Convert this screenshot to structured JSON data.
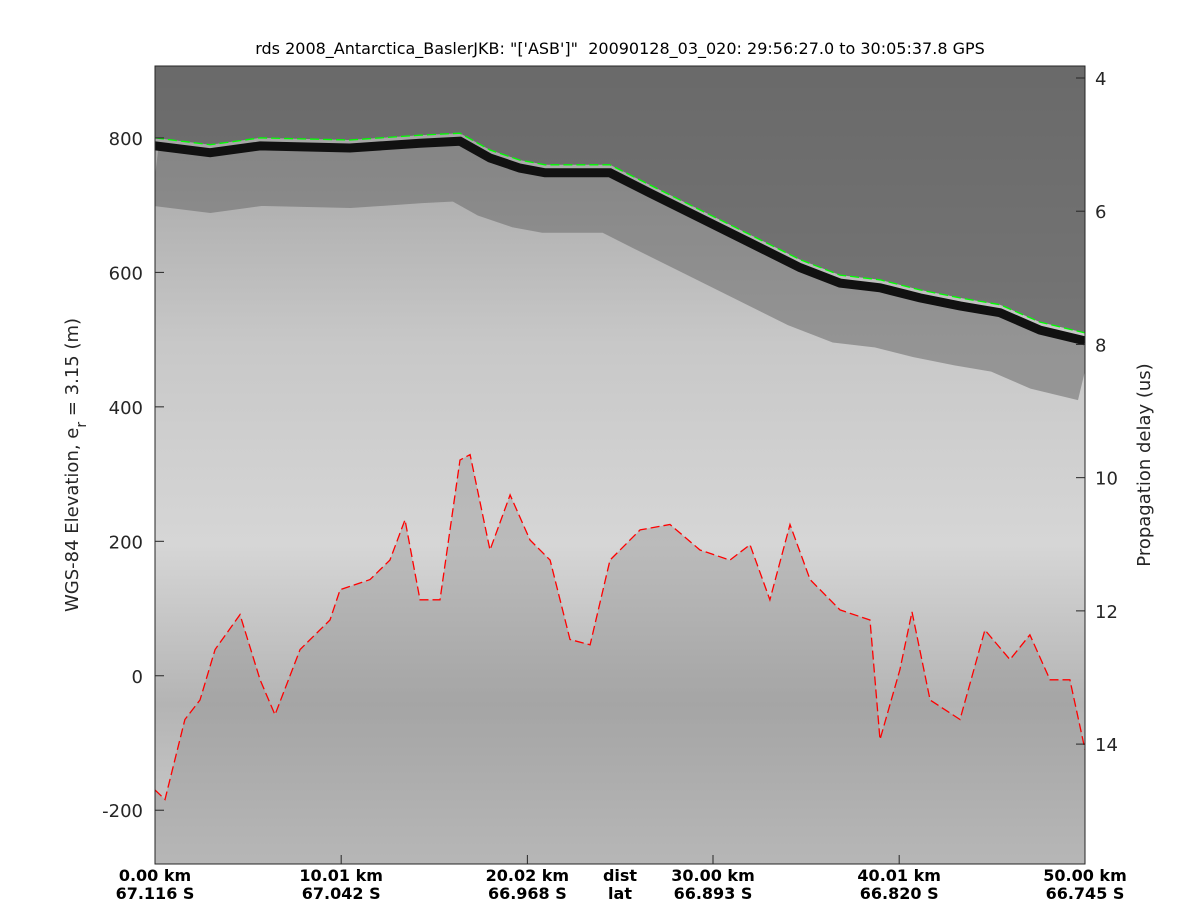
{
  "chart_data": {
    "type": "line",
    "title": "rds 2008_Antarctica_BaslerJKB: \"['ASB']\"  20090128_03_020: 29:56:27.0 to 30:05:37.8 GPS",
    "ylabel": {
      "text": "WGS-84 Elevation, e",
      "sub": "r",
      "rest": " = 3.15 (m)"
    },
    "y2label": "Propagation delay (us)",
    "xlabel": "dist",
    "xlabel2": "lat",
    "xlim": [
      0,
      50
    ],
    "xticks": [
      {
        "value": 0,
        "label": "0.00 km"
      },
      {
        "value": 10.01,
        "label": "10.01 km"
      },
      {
        "value": 20.02,
        "label": "20.02 km"
      },
      {
        "value": 30.0,
        "label": "30.00 km"
      },
      {
        "value": 40.01,
        "label": "40.01 km"
      },
      {
        "value": 50.0,
        "label": "50.00 km"
      }
    ],
    "xticks2": [
      "67.116 S",
      "67.042 S",
      "66.968 S",
      "66.893 S",
      "66.820 S",
      "66.745 S"
    ],
    "ylim": [
      -280,
      907
    ],
    "yticks": [
      -200,
      0,
      200,
      400,
      600,
      800
    ],
    "y2lim": [
      3.82,
      15.8
    ],
    "y2reverse": true,
    "y2ticks": [
      4,
      6,
      8,
      10,
      12,
      14
    ],
    "series": [
      {
        "color": "#00ff00",
        "x": [
          0,
          2.96,
          5.65,
          10.48,
          14.25,
          16.4,
          18.01,
          19.62,
          20.97,
          24.46,
          26.61,
          29.3,
          31.99,
          34.68,
          36.83,
          38.98,
          41.13,
          43.28,
          45.43,
          47.58,
          50
        ],
        "values": [
          800,
          790,
          800,
          797,
          804,
          807,
          782,
          767,
          760,
          760,
          730,
          693,
          656,
          619,
          596,
          589,
          574,
          562,
          552,
          526,
          510
        ]
      },
      {
        "color": "#ff0000",
        "x": [
          0,
          0.54,
          1.61,
          2.42,
          3.23,
          4.57,
          5.65,
          6.45,
          7.8,
          9.41,
          9.95,
          11.56,
          12.63,
          13.44,
          14.25,
          15.32,
          16.4,
          16.94,
          18.01,
          19.09,
          20.16,
          21.24,
          22.31,
          23.39,
          24.46,
          26.08,
          27.69,
          29.3,
          30.91,
          31.99,
          33.06,
          34.14,
          35.22,
          36.83,
          38.44,
          38.98,
          40.05,
          40.7,
          41.67,
          43.28,
          44.62,
          45.97,
          47.04,
          48.12,
          49.19,
          50
        ],
        "values": [
          -170,
          -184,
          -65,
          -36,
          39,
          91,
          -6,
          -58,
          39,
          83,
          128,
          143,
          172,
          232,
          113,
          113,
          321,
          329,
          187,
          269,
          202,
          172,
          54,
          46,
          172,
          217,
          225,
          187,
          172,
          195,
          113,
          225,
          143,
          98,
          83,
          -95,
          9,
          95,
          -36,
          -65,
          68,
          24,
          61,
          -6,
          -6,
          -110
        ]
      }
    ]
  }
}
